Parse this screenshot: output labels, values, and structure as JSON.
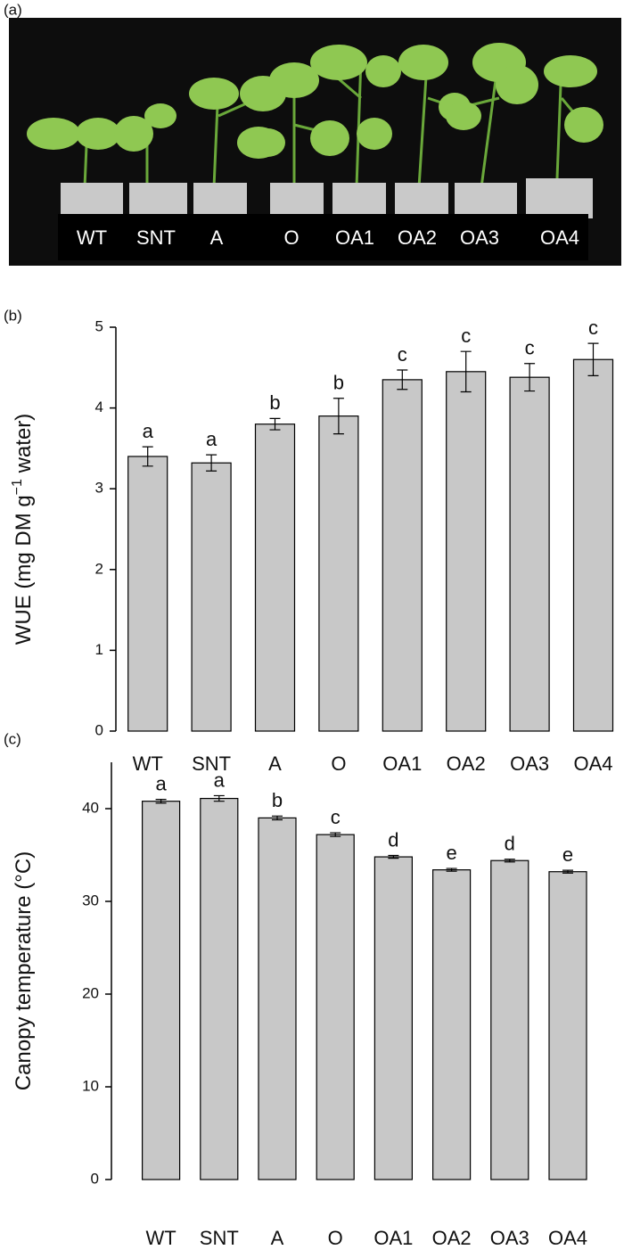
{
  "panel_labels": [
    "(a)",
    "(b)",
    "(c)"
  ],
  "photo_labels": [
    "WT",
    "SNT",
    "A",
    "O",
    "OA1",
    "OA2",
    "OA3",
    "OA4"
  ],
  "chart_data": [
    {
      "type": "bar",
      "ylabel": "WUE (mg DM g",
      "ylabel_sup": "−1",
      "ylabel_end": " water)",
      "categories": [
        "WT",
        "SNT",
        "A",
        "O",
        "OA1",
        "OA2",
        "OA3",
        "OA4"
      ],
      "values": [
        3.4,
        3.32,
        3.8,
        3.9,
        4.35,
        4.45,
        4.38,
        4.6
      ],
      "errors": [
        0.12,
        0.1,
        0.07,
        0.22,
        0.12,
        0.25,
        0.17,
        0.2
      ],
      "letters": [
        "a",
        "a",
        "b",
        "b",
        "c",
        "c",
        "c",
        "c"
      ],
      "color": "#c8c8c8",
      "ylim": [
        0,
        5
      ],
      "yticks": [
        0,
        1,
        2,
        3,
        4,
        5
      ]
    },
    {
      "type": "bar",
      "ylabel": "Canopy temperature (°C)",
      "categories": [
        "WT",
        "SNT",
        "A",
        "O",
        "OA1",
        "OA2",
        "OA3",
        "OA4"
      ],
      "values": [
        40.8,
        41.1,
        39.0,
        37.2,
        34.8,
        33.4,
        34.4,
        33.2
      ],
      "errors": [
        0.2,
        0.3,
        0.2,
        0.2,
        0.15,
        0.15,
        0.15,
        0.15
      ],
      "letters": [
        "a",
        "a",
        "b",
        "c",
        "d",
        "e",
        "d",
        "e"
      ],
      "color": "#c8c8c8",
      "ylim": [
        0,
        45
      ],
      "yticks": [
        0,
        10,
        20,
        30,
        40
      ]
    }
  ]
}
